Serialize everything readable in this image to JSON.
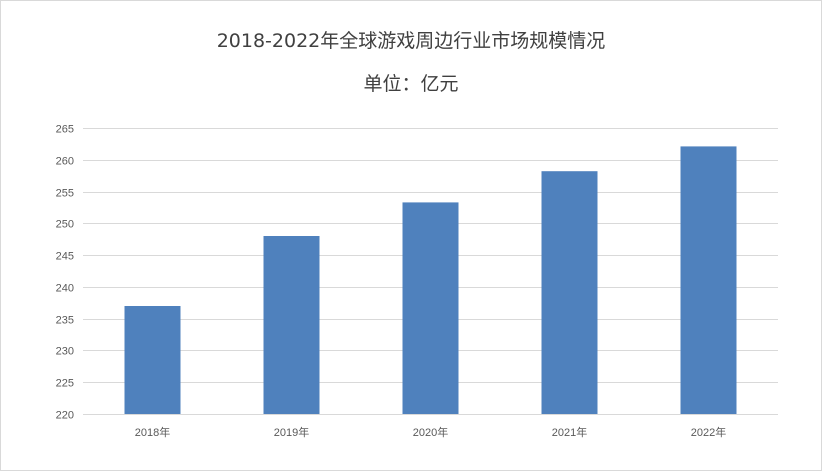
{
  "chart_data": {
    "type": "bar",
    "title": "2018-2022年全球游戏周边行业市场规模情况",
    "subtitle": "单位：亿元",
    "categories": [
      "2018年",
      "2019年",
      "2020年",
      "2021年",
      "2022年"
    ],
    "values": [
      237,
      248,
      253.3,
      258.2,
      262.1
    ],
    "ylim": [
      220,
      265
    ],
    "yticks": [
      220,
      225,
      230,
      235,
      240,
      245,
      250,
      255,
      260,
      265
    ],
    "grid": true,
    "legend": "none",
    "bar_color": "#4f81bd",
    "grid_color": "#d9d9d9"
  }
}
